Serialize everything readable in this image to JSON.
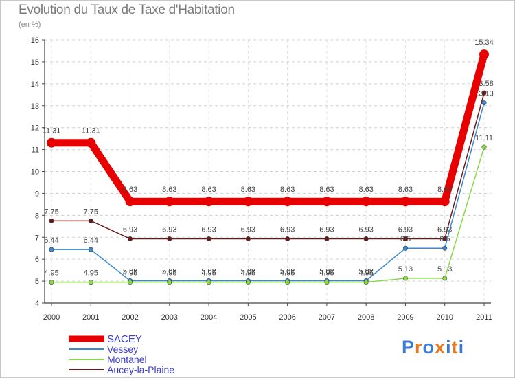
{
  "title": "Evolution du Taux de Taxe d'Habitation",
  "subtitle": "(en %)",
  "logo": {
    "text": "Proxiti",
    "colors": [
      "#3b7ad6",
      "#e8781e",
      "#3b7ad6",
      "#e8781e",
      "#3b7ad6",
      "#e8781e",
      "#3b7ad6"
    ]
  },
  "chart_data": {
    "type": "line",
    "title": "Evolution du Taux de Taxe d'Habitation",
    "ylabel": "(en %)",
    "xlabel": "",
    "categories": [
      "2000",
      "2001",
      "2002",
      "2003",
      "2004",
      "2005",
      "2006",
      "2007",
      "2008",
      "2009",
      "2010",
      "2011"
    ],
    "ylim": [
      4,
      16
    ],
    "yticks": [
      "4",
      "5",
      "6",
      "7",
      "8",
      "9",
      "10",
      "11",
      "12",
      "13",
      "14",
      "15",
      "16"
    ],
    "legend_position": "bottom-left",
    "series": [
      {
        "name": "SACEY",
        "color": "#e80000",
        "emphasis": true,
        "values": [
          11.31,
          11.31,
          8.63,
          8.63,
          8.63,
          8.63,
          8.63,
          8.63,
          8.63,
          8.63,
          8.63,
          15.34
        ],
        "labels": [
          "11.31",
          "11.31",
          "8.63",
          "8.63",
          "8.63",
          "8.63",
          "8.63",
          "8.63",
          "8.63",
          "8.63",
          "8.63",
          "15.34"
        ]
      },
      {
        "name": "Vessey",
        "color": "#3b8ad0",
        "emphasis": false,
        "values": [
          6.44,
          6.44,
          5.02,
          5.02,
          5.02,
          5.02,
          5.02,
          5.02,
          5.02,
          6.5,
          6.5,
          13.13
        ],
        "labels": [
          "6.44",
          "6.44",
          "5.02",
          "5.02",
          "5.02",
          "5.02",
          "5.02",
          "5.02",
          "5.02",
          "6.5",
          "6.5",
          "13.13"
        ]
      },
      {
        "name": "Montanel",
        "color": "#88d848",
        "emphasis": false,
        "values": [
          4.95,
          4.95,
          4.95,
          4.95,
          4.95,
          4.95,
          4.95,
          4.95,
          4.95,
          5.13,
          5.13,
          11.11
        ],
        "labels": [
          "4.95",
          "4.95",
          "4.95",
          "4.95",
          "4.95",
          "4.95",
          "4.95",
          "4.95",
          "4.95",
          "5.13",
          "5.13",
          "11.11"
        ]
      },
      {
        "name": "Aucey-la-Plaine",
        "color": "#6b1a1a",
        "emphasis": false,
        "values": [
          7.75,
          7.75,
          6.93,
          6.93,
          6.93,
          6.93,
          6.93,
          6.93,
          6.93,
          6.93,
          6.93,
          13.58
        ],
        "labels": [
          "7.75",
          "7.75",
          "6.93",
          "6.93",
          "6.93",
          "6.93",
          "6.93",
          "6.93",
          "6.93",
          "6.93",
          "6.93",
          "13.58"
        ]
      }
    ]
  }
}
